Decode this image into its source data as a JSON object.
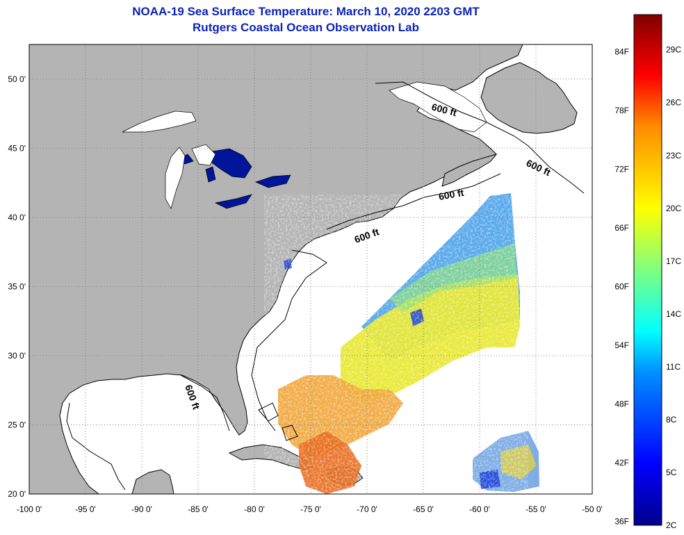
{
  "title": {
    "line1": "NOAA-19 Sea Surface Temperature:  March 10, 2020 2203 GMT",
    "line2": "Rutgers Coastal Ocean Observation Lab"
  },
  "map": {
    "lon_range": [
      -100,
      -50
    ],
    "lat_range": [
      20,
      52.5
    ],
    "lon_ticks": [
      "-100 0'",
      "-95 0'",
      "-90 0'",
      "-85 0'",
      "-80 0'",
      "-75 0'",
      "-70 0'",
      "-65 0'",
      "-60 0'",
      "-55 0'",
      "-50 0'"
    ],
    "lat_ticks": [
      "20 0'",
      "25 0'",
      "30 0'",
      "35 0'",
      "40 0'",
      "45 0'",
      "50 0'"
    ],
    "isobath_label": "600 ft",
    "colors": {
      "land": "#b4b4b4",
      "ocean_no_data": "#ffffff",
      "grid": "#808080",
      "coast": "#000000"
    }
  },
  "colorbar": {
    "fahrenheit_labels": [
      "84F",
      "78F",
      "72F",
      "66F",
      "60F",
      "54F",
      "48F",
      "42F",
      "36F"
    ],
    "celsius_labels": [
      "29C",
      "26C",
      "23C",
      "20C",
      "17C",
      "14C",
      "11C",
      "8C",
      "5C",
      "2C"
    ],
    "min_celsius": 2,
    "max_celsius": 31
  }
}
